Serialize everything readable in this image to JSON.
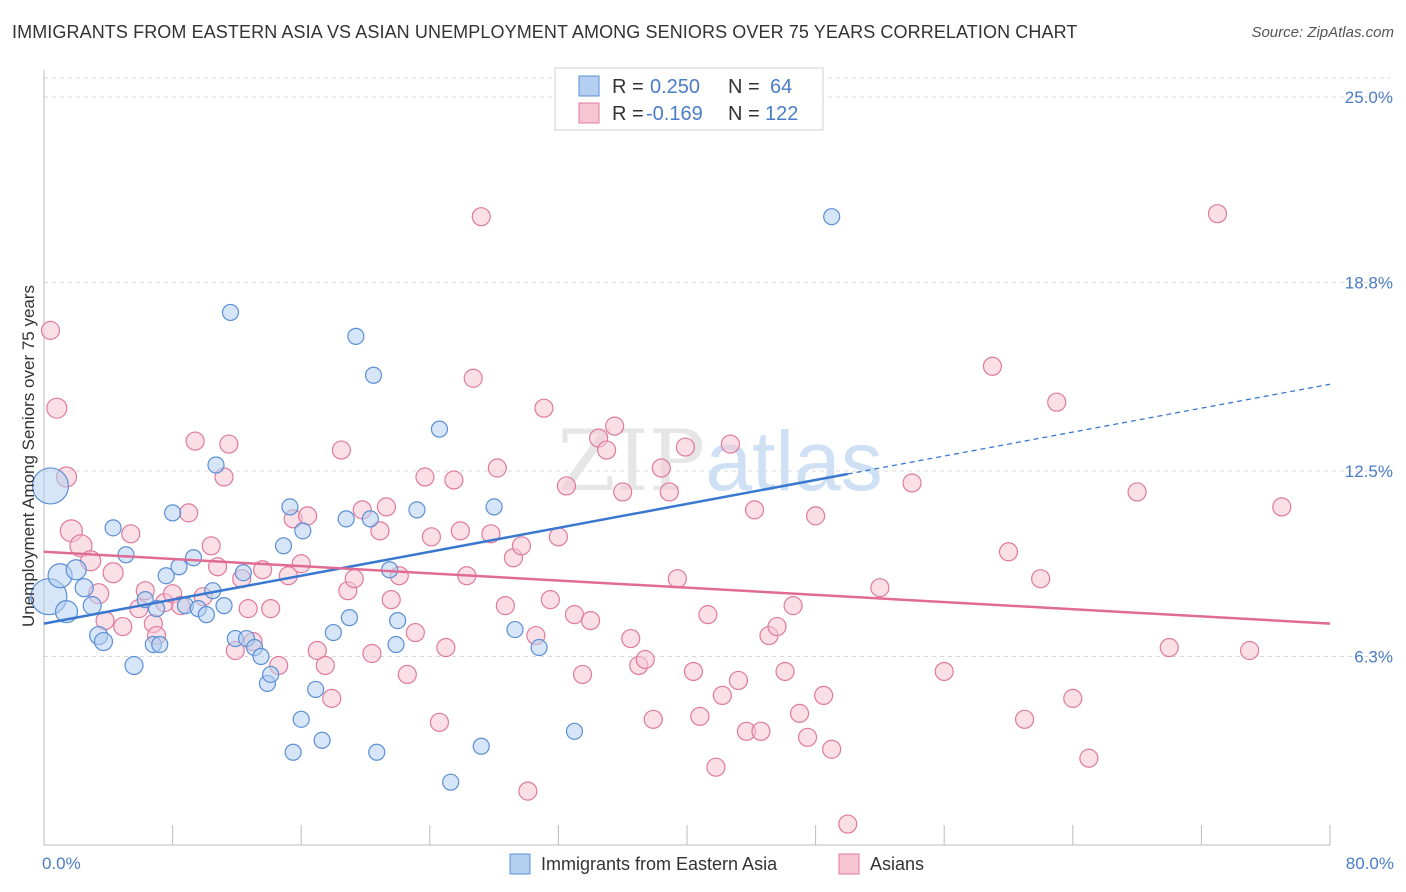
{
  "title": "IMMIGRANTS FROM EASTERN ASIA VS ASIAN UNEMPLOYMENT AMONG SENIORS OVER 75 YEARS CORRELATION CHART",
  "source": "Source: ZipAtlas.com",
  "watermark": "ZIPatlas",
  "colors": {
    "blue": "#5b8fd6",
    "blue_fill": "#b5cff0",
    "pink": "#e07a9c",
    "pink_fill": "#f6c4d3",
    "blue_line": "#3a78cf",
    "pink_line": "#e06b94",
    "tick_label": "#4a7cc7",
    "grid": "#d8d8d8"
  },
  "legend": {
    "rows": [
      {
        "r_label": "R =",
        "r_value": "0.250",
        "n_label": "N =",
        "n_value": "64",
        "series": "blue"
      },
      {
        "r_label": "R =",
        "r_value": "-0.169",
        "n_label": "N =",
        "n_value": "122",
        "series": "pink"
      }
    ]
  },
  "chart_data": {
    "type": "scatter",
    "title": "IMMIGRANTS FROM EASTERN ASIA VS ASIAN UNEMPLOYMENT AMONG SENIORS OVER 75 YEARS CORRELATION CHART",
    "xlabel": "",
    "ylabel": "Unemployment Among Seniors over 75 years",
    "xlim": [
      0,
      80
    ],
    "ylim": [
      0,
      25
    ],
    "x_tick_labels": [
      {
        "value": 0,
        "label": "0.0%"
      },
      {
        "value": 80,
        "label": "80.0%"
      }
    ],
    "y_tick_labels": [
      {
        "value": 6.3,
        "label": "6.3%"
      },
      {
        "value": 12.5,
        "label": "12.5%"
      },
      {
        "value": 18.8,
        "label": "18.8%"
      },
      {
        "value": 25.0,
        "label": "25.0%"
      }
    ],
    "grid": true,
    "legend_position": "top-center",
    "series": [
      {
        "name": "Immigrants from Eastern Asia",
        "color": "blue",
        "r": 0.25,
        "n": 64,
        "trend": {
          "x0": 0,
          "y0": 7.4,
          "x1": 50,
          "y1": 12.4,
          "dash_to_x": 80,
          "dash_to_y": 15.4
        },
        "points": [
          [
            0.4,
            12.0,
            18
          ],
          [
            0.3,
            8.3,
            18
          ],
          [
            1.0,
            9.0,
            12
          ],
          [
            1.4,
            7.8,
            11
          ],
          [
            2.0,
            9.2,
            10
          ],
          [
            2.5,
            8.6,
            9
          ],
          [
            3.0,
            8.0,
            9
          ],
          [
            3.4,
            7.0,
            9
          ],
          [
            3.7,
            6.8,
            9
          ],
          [
            4.3,
            10.6,
            8
          ],
          [
            5.1,
            9.7,
            8
          ],
          [
            5.6,
            6.0,
            9
          ],
          [
            6.3,
            8.2,
            8
          ],
          [
            6.8,
            6.7,
            8
          ],
          [
            7.0,
            7.9,
            8
          ],
          [
            7.2,
            6.7,
            8
          ],
          [
            7.6,
            9.0,
            8
          ],
          [
            8.0,
            11.1,
            8
          ],
          [
            8.4,
            9.3,
            8
          ],
          [
            8.8,
            8.0,
            8
          ],
          [
            9.3,
            9.6,
            8
          ],
          [
            9.6,
            7.9,
            8
          ],
          [
            10.1,
            7.7,
            8
          ],
          [
            10.5,
            8.5,
            8
          ],
          [
            10.7,
            12.7,
            8
          ],
          [
            11.2,
            8.0,
            8
          ],
          [
            11.6,
            17.8,
            8
          ],
          [
            11.9,
            6.9,
            8
          ],
          [
            12.4,
            9.1,
            8
          ],
          [
            12.6,
            6.9,
            8
          ],
          [
            13.1,
            6.6,
            8
          ],
          [
            13.5,
            6.3,
            8
          ],
          [
            13.9,
            5.4,
            8
          ],
          [
            14.1,
            5.7,
            8
          ],
          [
            14.9,
            10.0,
            8
          ],
          [
            15.3,
            11.3,
            8
          ],
          [
            15.5,
            3.1,
            8
          ],
          [
            16.0,
            4.2,
            8
          ],
          [
            16.1,
            10.5,
            8
          ],
          [
            16.9,
            5.2,
            8
          ],
          [
            17.3,
            3.5,
            8
          ],
          [
            18.0,
            7.1,
            8
          ],
          [
            18.8,
            10.9,
            8
          ],
          [
            19.0,
            7.6,
            8
          ],
          [
            19.4,
            17.0,
            8
          ],
          [
            20.3,
            10.9,
            8
          ],
          [
            20.5,
            15.7,
            8
          ],
          [
            20.7,
            3.1,
            8
          ],
          [
            21.5,
            9.2,
            8
          ],
          [
            21.9,
            6.7,
            8
          ],
          [
            22.0,
            7.5,
            8
          ],
          [
            23.2,
            11.2,
            8
          ],
          [
            24.6,
            13.9,
            8
          ],
          [
            25.3,
            2.1,
            8
          ],
          [
            27.2,
            3.3,
            8
          ],
          [
            28.0,
            11.3,
            8
          ],
          [
            29.3,
            7.2,
            8
          ],
          [
            30.8,
            6.6,
            8
          ],
          [
            33.0,
            3.8,
            8
          ],
          [
            49.0,
            21.0,
            8
          ]
        ]
      },
      {
        "name": "Asians",
        "color": "pink",
        "r": -0.169,
        "n": 122,
        "trend": {
          "x0": 0,
          "y0": 9.8,
          "x1": 80,
          "y1": 7.4
        },
        "points": [
          [
            0.4,
            17.2,
            9
          ],
          [
            0.8,
            14.6,
            10
          ],
          [
            1.4,
            12.3,
            10
          ],
          [
            1.7,
            10.5,
            11
          ],
          [
            2.3,
            10.0,
            11
          ],
          [
            2.9,
            9.5,
            10
          ],
          [
            3.4,
            8.4,
            10
          ],
          [
            3.8,
            7.5,
            9
          ],
          [
            4.3,
            9.1,
            10
          ],
          [
            4.9,
            7.3,
            9
          ],
          [
            5.4,
            10.4,
            9
          ],
          [
            5.9,
            7.9,
            9
          ],
          [
            6.3,
            8.5,
            9
          ],
          [
            6.8,
            7.4,
            9
          ],
          [
            7.0,
            7.0,
            9
          ],
          [
            7.5,
            8.1,
            9
          ],
          [
            8.0,
            8.4,
            9
          ],
          [
            8.5,
            8.0,
            9
          ],
          [
            9.0,
            11.1,
            9
          ],
          [
            9.4,
            13.5,
            9
          ],
          [
            9.9,
            8.3,
            9
          ],
          [
            10.4,
            10.0,
            9
          ],
          [
            10.8,
            9.3,
            9
          ],
          [
            11.2,
            12.3,
            9
          ],
          [
            11.5,
            13.4,
            9
          ],
          [
            11.9,
            6.5,
            9
          ],
          [
            12.3,
            8.9,
            9
          ],
          [
            12.7,
            7.9,
            9
          ],
          [
            13.0,
            6.8,
            9
          ],
          [
            13.6,
            9.2,
            9
          ],
          [
            14.1,
            7.9,
            9
          ],
          [
            14.6,
            6.0,
            9
          ],
          [
            15.2,
            9.0,
            9
          ],
          [
            15.5,
            10.9,
            9
          ],
          [
            16.0,
            9.4,
            9
          ],
          [
            16.4,
            11.0,
            9
          ],
          [
            17.0,
            6.5,
            9
          ],
          [
            17.5,
            6.0,
            9
          ],
          [
            17.9,
            4.9,
            9
          ],
          [
            18.5,
            13.2,
            9
          ],
          [
            18.9,
            8.5,
            9
          ],
          [
            19.3,
            8.9,
            9
          ],
          [
            19.8,
            11.2,
            9
          ],
          [
            20.4,
            6.4,
            9
          ],
          [
            20.9,
            10.5,
            9
          ],
          [
            21.3,
            11.3,
            9
          ],
          [
            21.6,
            8.2,
            9
          ],
          [
            22.1,
            9.0,
            9
          ],
          [
            22.6,
            5.7,
            9
          ],
          [
            23.1,
            7.1,
            9
          ],
          [
            23.7,
            12.3,
            9
          ],
          [
            24.1,
            10.3,
            9
          ],
          [
            24.6,
            4.1,
            9
          ],
          [
            25.0,
            6.6,
            9
          ],
          [
            25.5,
            12.2,
            9
          ],
          [
            25.9,
            10.5,
            9
          ],
          [
            26.3,
            9.0,
            9
          ],
          [
            26.7,
            15.6,
            9
          ],
          [
            27.2,
            21.0,
            9
          ],
          [
            27.8,
            10.4,
            9
          ],
          [
            28.2,
            12.6,
            9
          ],
          [
            28.7,
            8.0,
            9
          ],
          [
            29.2,
            9.6,
            9
          ],
          [
            29.7,
            10.0,
            9
          ],
          [
            30.1,
            1.8,
            9
          ],
          [
            30.6,
            7.0,
            9
          ],
          [
            31.1,
            14.6,
            9
          ],
          [
            31.5,
            8.2,
            9
          ],
          [
            32.0,
            10.3,
            9
          ],
          [
            32.5,
            12.0,
            9
          ],
          [
            33.0,
            7.7,
            9
          ],
          [
            33.5,
            5.7,
            9
          ],
          [
            34.0,
            7.5,
            9
          ],
          [
            34.5,
            13.6,
            9
          ],
          [
            35.0,
            13.2,
            9
          ],
          [
            35.5,
            14.0,
            9
          ],
          [
            36.0,
            11.8,
            9
          ],
          [
            36.5,
            6.9,
            9
          ],
          [
            37.0,
            6.0,
            9
          ],
          [
            37.4,
            6.2,
            9
          ],
          [
            37.9,
            4.2,
            9
          ],
          [
            38.4,
            12.6,
            9
          ],
          [
            38.9,
            11.8,
            9
          ],
          [
            39.4,
            8.9,
            9
          ],
          [
            39.9,
            13.3,
            9
          ],
          [
            40.4,
            5.8,
            9
          ],
          [
            40.8,
            4.3,
            9
          ],
          [
            41.3,
            7.7,
            9
          ],
          [
            41.8,
            2.6,
            9
          ],
          [
            42.2,
            5.0,
            9
          ],
          [
            42.7,
            13.4,
            9
          ],
          [
            43.2,
            5.5,
            9
          ],
          [
            43.7,
            3.8,
            9
          ],
          [
            44.2,
            11.2,
            9
          ],
          [
            44.6,
            3.8,
            9
          ],
          [
            45.1,
            7.0,
            9
          ],
          [
            45.6,
            7.3,
            9
          ],
          [
            46.1,
            5.8,
            9
          ],
          [
            46.6,
            8.0,
            9
          ],
          [
            47.0,
            4.4,
            9
          ],
          [
            47.5,
            3.6,
            9
          ],
          [
            48.0,
            11.0,
            9
          ],
          [
            48.5,
            5.0,
            9
          ],
          [
            49.0,
            3.2,
            9
          ],
          [
            50.0,
            0.7,
            9
          ],
          [
            52.0,
            8.6,
            9
          ],
          [
            54.0,
            12.1,
            9
          ],
          [
            56.0,
            5.8,
            9
          ],
          [
            59.0,
            16.0,
            9
          ],
          [
            60.0,
            9.8,
            9
          ],
          [
            61.0,
            4.2,
            9
          ],
          [
            62.0,
            8.9,
            9
          ],
          [
            63.0,
            14.8,
            9
          ],
          [
            64.0,
            4.9,
            9
          ],
          [
            65.0,
            2.9,
            9
          ],
          [
            68.0,
            11.8,
            9
          ],
          [
            70.0,
            6.6,
            9
          ],
          [
            73.0,
            21.1,
            9
          ],
          [
            75.0,
            6.5,
            9
          ],
          [
            77.0,
            11.3,
            9
          ]
        ]
      }
    ]
  },
  "bottom_legend": {
    "items": [
      {
        "label": "Immigrants from Eastern Asia",
        "series": "blue"
      },
      {
        "label": "Asians",
        "series": "pink"
      }
    ]
  }
}
